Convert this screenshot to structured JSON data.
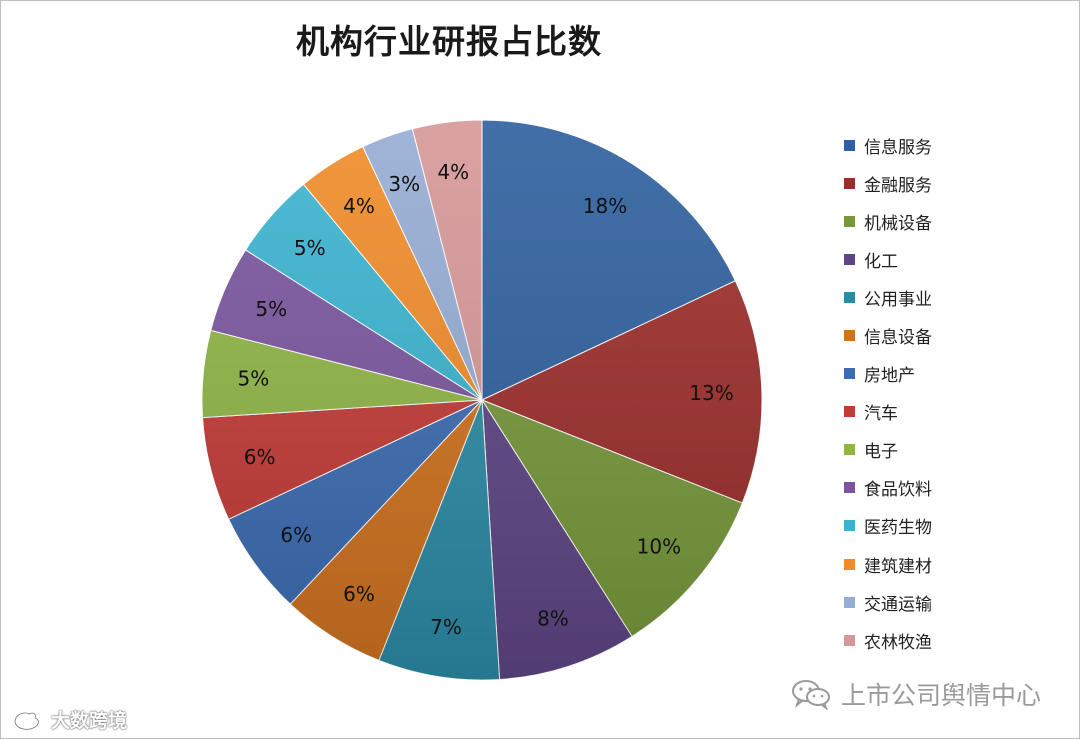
{
  "chart_data": {
    "type": "pie",
    "title": "机构行业研报占比数",
    "legend_position": "right",
    "categories": [
      "信息服务",
      "金融服务",
      "机械设备",
      "化工",
      "公用事业",
      "信息设备",
      "房地产",
      "汽车",
      "电子",
      "食品饮料",
      "医药生物",
      "建筑建材",
      "交通运输",
      "农林牧渔"
    ],
    "values": [
      18,
      13,
      10,
      8,
      7,
      6,
      6,
      6,
      5,
      5,
      5,
      4,
      3,
      4
    ],
    "labels": [
      "18%",
      "13%",
      "10%",
      "8%",
      "7%",
      "6%",
      "6%",
      "6%",
      "5%",
      "5%",
      "5%",
      "4%",
      "3%",
      "4%"
    ],
    "colors": [
      "#2e5f9e",
      "#9b2d2a",
      "#76983a",
      "#5e4585",
      "#2b8ba6",
      "#d0721e",
      "#3b6cb2",
      "#c33a36",
      "#8fb545",
      "#7a559e",
      "#3ab3cf",
      "#f08b28",
      "#95acd4",
      "#d69797"
    ]
  },
  "watermarks": {
    "right": "上市公司舆情中心",
    "left": "大数跨境"
  },
  "icons": {
    "right": "wechat-icon",
    "left": "weibo-icon"
  }
}
